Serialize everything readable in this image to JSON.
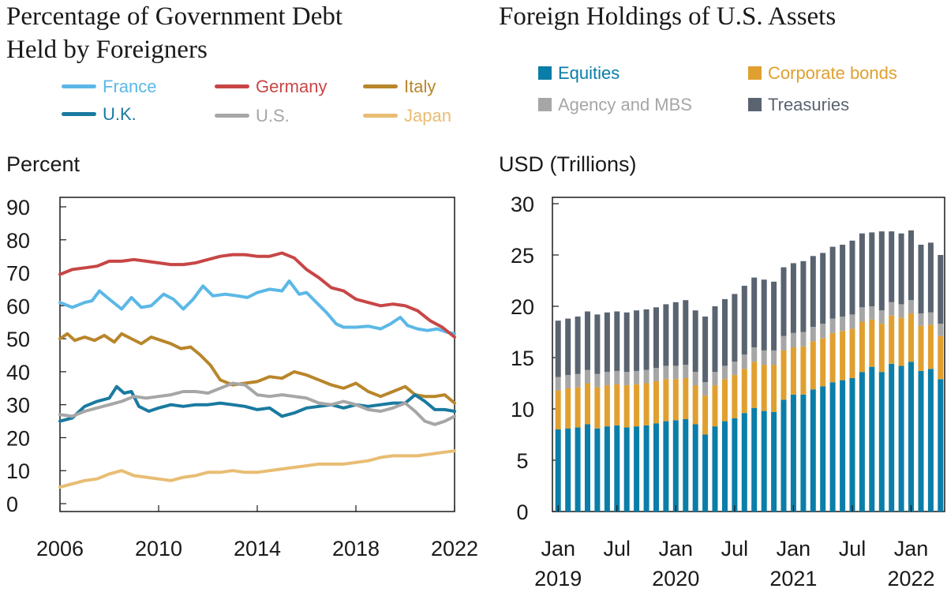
{
  "chart_data": [
    {
      "type": "line",
      "title": "Percentage of Government Debt Held by Foreigners",
      "title_lines": [
        "Percentage of Government Debt",
        "Held by Foreigners"
      ],
      "ylabel": "Percent",
      "ylim": [
        0,
        90
      ],
      "xlim": [
        2006,
        2022
      ],
      "yticks": [
        0,
        10,
        20,
        30,
        40,
        50,
        60,
        70,
        80,
        90
      ],
      "xticks": [
        2006,
        2010,
        2014,
        2018,
        2022
      ],
      "grid": false,
      "legend_placement": "top",
      "series": [
        {
          "name": "France",
          "color": "#5bb8e6",
          "x": [
            2006,
            2006.5,
            2007,
            2007.3,
            2007.6,
            2008,
            2008.5,
            2008.9,
            2009.3,
            2009.7,
            2010.2,
            2010.6,
            2011,
            2011.4,
            2011.8,
            2012.2,
            2012.7,
            2013.2,
            2013.6,
            2014,
            2014.5,
            2015,
            2015.3,
            2015.7,
            2016,
            2016.4,
            2016.8,
            2017.2,
            2017.5,
            2018,
            2018.5,
            2019,
            2019.4,
            2019.8,
            2020.1,
            2020.5,
            2020.9,
            2021.3,
            2021.7,
            2022
          ],
          "values": [
            61,
            59.5,
            61,
            61.5,
            64.5,
            62,
            59,
            62.5,
            59.5,
            60,
            63.5,
            62,
            59,
            62,
            66,
            63,
            63.5,
            63,
            62.5,
            64,
            65,
            64.5,
            67.5,
            63.5,
            64,
            61,
            58,
            54.5,
            53.5,
            53.5,
            53.8,
            53,
            54.5,
            56.5,
            54,
            53,
            52.5,
            53,
            52,
            51.5
          ]
        },
        {
          "name": "Germany",
          "color": "#c84646",
          "x": [
            2006,
            2006.5,
            2007,
            2007.5,
            2008,
            2008.5,
            2009,
            2009.5,
            2010,
            2010.5,
            2011,
            2011.5,
            2012,
            2012.5,
            2013,
            2013.5,
            2014,
            2014.5,
            2015,
            2015.5,
            2016,
            2016.5,
            2017,
            2017.5,
            2018,
            2018.5,
            2019,
            2019.5,
            2020,
            2020.5,
            2021,
            2021.5,
            2022
          ],
          "values": [
            69.5,
            71,
            71.5,
            72,
            73.5,
            73.5,
            74,
            73.5,
            73,
            72.5,
            72.5,
            73,
            74,
            75,
            75.5,
            75.5,
            75,
            75,
            76,
            74.5,
            71,
            68.5,
            65.5,
            64.5,
            62,
            61,
            60,
            60.5,
            60,
            58.5,
            55.5,
            53.5,
            50.5
          ]
        },
        {
          "name": "Italy",
          "color": "#b8862a",
          "x": [
            2006,
            2006.3,
            2006.6,
            2007,
            2007.4,
            2007.8,
            2008.2,
            2008.5,
            2008.9,
            2009.3,
            2009.7,
            2010.1,
            2010.5,
            2010.9,
            2011.3,
            2011.7,
            2012.1,
            2012.5,
            2013,
            2013.5,
            2014,
            2014.5,
            2015,
            2015.5,
            2016,
            2016.5,
            2017,
            2017.5,
            2018,
            2018.5,
            2019,
            2019.5,
            2020,
            2020.4,
            2020.8,
            2021.2,
            2021.6,
            2022
          ],
          "values": [
            50,
            51.5,
            49.5,
            50.5,
            49.5,
            51,
            49,
            51.5,
            50,
            48.5,
            50.5,
            49.5,
            48.5,
            47,
            47.5,
            45,
            42,
            37.5,
            36,
            36.5,
            37,
            38.5,
            38,
            40,
            39,
            37.5,
            36,
            35,
            36.5,
            34,
            32.5,
            34,
            35.5,
            33,
            32.5,
            32.5,
            33,
            30.5
          ]
        },
        {
          "name": "U.K.",
          "color": "#1a7aa0",
          "x": [
            2006,
            2006.5,
            2007,
            2007.5,
            2008,
            2008.3,
            2008.6,
            2008.9,
            2009.2,
            2009.6,
            2010,
            2010.5,
            2011,
            2011.5,
            2012,
            2012.5,
            2013,
            2013.5,
            2014,
            2014.5,
            2015,
            2015.5,
            2016,
            2016.5,
            2017,
            2017.5,
            2018,
            2018.5,
            2019,
            2019.5,
            2020,
            2020.4,
            2020.8,
            2021.2,
            2021.6,
            2022
          ],
          "values": [
            25,
            26,
            29.5,
            31,
            32,
            35.5,
            33.5,
            34,
            29.5,
            28,
            29,
            30,
            29.5,
            30,
            30,
            30.5,
            30,
            29.5,
            28.5,
            29,
            26.5,
            27.5,
            29,
            29.5,
            30,
            29,
            30,
            29.5,
            30,
            30.5,
            30.5,
            33,
            31,
            28.5,
            28.5,
            28
          ]
        },
        {
          "name": "U.S.",
          "color": "#a6a6a6",
          "x": [
            2006,
            2006.5,
            2007,
            2007.5,
            2008,
            2008.5,
            2009,
            2009.5,
            2010,
            2010.5,
            2011,
            2011.5,
            2012,
            2012.5,
            2013,
            2013.5,
            2014,
            2014.5,
            2015,
            2015.5,
            2016,
            2016.5,
            2017,
            2017.5,
            2018,
            2018.5,
            2019,
            2019.5,
            2020,
            2020.4,
            2020.8,
            2021.2,
            2021.6,
            2022
          ],
          "values": [
            27,
            26.5,
            28,
            29,
            30,
            31,
            32.5,
            32,
            32.5,
            33,
            34,
            34,
            33.5,
            35,
            36.5,
            36,
            33,
            32.5,
            33,
            32.5,
            32,
            30.5,
            30,
            31,
            30,
            28.5,
            28,
            29,
            30.5,
            28,
            25,
            24,
            25,
            26.5
          ]
        },
        {
          "name": "Japan",
          "color": "#e8bd73",
          "x": [
            2006,
            2006.5,
            2007,
            2007.5,
            2008,
            2008.5,
            2009,
            2009.5,
            2010,
            2010.5,
            2011,
            2011.5,
            2012,
            2012.5,
            2013,
            2013.5,
            2014,
            2014.5,
            2015,
            2015.5,
            2016,
            2016.5,
            2017,
            2017.5,
            2018,
            2018.5,
            2019,
            2019.5,
            2020,
            2020.5,
            2021,
            2021.5,
            2022
          ],
          "values": [
            5,
            6,
            7,
            7.5,
            9,
            10,
            8.5,
            8,
            7.5,
            7,
            8,
            8.5,
            9.5,
            9.5,
            10,
            9.5,
            9.5,
            10,
            10.5,
            11,
            11.5,
            12,
            12,
            12,
            12.5,
            13,
            14,
            14.5,
            14.5,
            14.5,
            15,
            15.5,
            16
          ]
        }
      ]
    },
    {
      "type": "bar",
      "stacked": true,
      "title": "Foreign Holdings of U.S. Assets",
      "ylabel": "USD (Trillions)",
      "ylim": [
        0,
        30
      ],
      "yticks": [
        0,
        5,
        10,
        15,
        20,
        25,
        30
      ],
      "grid": false,
      "legend_placement": "top",
      "x_tick_labels": [
        {
          "month": "Jan",
          "year": "2019",
          "index": 0
        },
        {
          "month": "Jul",
          "year": "",
          "index": 6
        },
        {
          "month": "Jan",
          "year": "2020",
          "index": 12
        },
        {
          "month": "Jul",
          "year": "",
          "index": 18
        },
        {
          "month": "Jan",
          "year": "2021",
          "index": 24
        },
        {
          "month": "Jul",
          "year": "",
          "index": 30
        },
        {
          "month": "Jan",
          "year": "2022",
          "index": 36
        }
      ],
      "categories": [
        "Jan 2019",
        "Feb 2019",
        "Mar 2019",
        "Apr 2019",
        "May 2019",
        "Jun 2019",
        "Jul 2019",
        "Aug 2019",
        "Sep 2019",
        "Oct 2019",
        "Nov 2019",
        "Dec 2019",
        "Jan 2020",
        "Feb 2020",
        "Mar 2020",
        "Apr 2020",
        "May 2020",
        "Jun 2020",
        "Jul 2020",
        "Aug 2020",
        "Sep 2020",
        "Oct 2020",
        "Nov 2020",
        "Dec 2020",
        "Jan 2021",
        "Feb 2021",
        "Mar 2021",
        "Apr 2021",
        "May 2021",
        "Jun 2021",
        "Jul 2021",
        "Aug 2021",
        "Sep 2021",
        "Oct 2021",
        "Nov 2021",
        "Dec 2021",
        "Jan 2022",
        "Feb 2022",
        "Mar 2022",
        "Apr 2022"
      ],
      "series": [
        {
          "name": "Equities",
          "color": "#0a7ea8",
          "values": [
            8.0,
            8.1,
            8.2,
            8.5,
            8.1,
            8.3,
            8.4,
            8.2,
            8.3,
            8.4,
            8.6,
            8.8,
            8.9,
            9.0,
            8.5,
            7.5,
            8.3,
            8.8,
            9.1,
            9.6,
            10.1,
            9.8,
            9.7,
            10.9,
            11.4,
            11.4,
            11.9,
            12.2,
            12.6,
            12.8,
            13.0,
            13.6,
            14.1,
            13.6,
            14.4,
            14.2,
            14.6,
            13.7,
            13.9,
            12.9
          ]
        },
        {
          "name": "Corporate bonds",
          "color": "#e0a030",
          "values": [
            3.8,
            3.9,
            3.9,
            4.0,
            4.0,
            4.0,
            4.0,
            4.1,
            4.1,
            4.1,
            4.1,
            4.1,
            4.0,
            4.0,
            3.8,
            3.8,
            4.0,
            4.1,
            4.2,
            4.3,
            4.5,
            4.5,
            4.6,
            4.8,
            4.6,
            4.7,
            4.7,
            4.7,
            4.8,
            4.8,
            4.8,
            4.9,
            4.6,
            4.7,
            4.7,
            4.7,
            4.7,
            4.4,
            4.3,
            4.2
          ]
        },
        {
          "name": "Agency and MBS",
          "color": "#a6a6a6",
          "values": [
            1.3,
            1.3,
            1.3,
            1.3,
            1.3,
            1.3,
            1.3,
            1.3,
            1.3,
            1.3,
            1.3,
            1.3,
            1.3,
            1.3,
            1.3,
            1.3,
            1.3,
            1.3,
            1.3,
            1.4,
            1.4,
            1.4,
            1.4,
            1.4,
            1.4,
            1.4,
            1.4,
            1.4,
            1.4,
            1.4,
            1.4,
            1.4,
            1.3,
            1.3,
            1.3,
            1.3,
            1.3,
            1.2,
            1.2,
            1.2
          ]
        },
        {
          "name": "Treasuries",
          "color": "#5a6470",
          "values": [
            5.5,
            5.5,
            5.6,
            5.7,
            5.8,
            5.8,
            5.8,
            5.8,
            5.9,
            5.9,
            5.9,
            6.0,
            6.2,
            6.3,
            6.0,
            6.4,
            6.4,
            6.5,
            6.6,
            6.7,
            6.8,
            6.9,
            6.7,
            6.7,
            6.8,
            6.9,
            6.9,
            6.9,
            7.0,
            7.0,
            7.2,
            7.2,
            7.2,
            7.7,
            6.9,
            6.9,
            6.8,
            6.7,
            6.8,
            6.7
          ]
        }
      ]
    }
  ]
}
